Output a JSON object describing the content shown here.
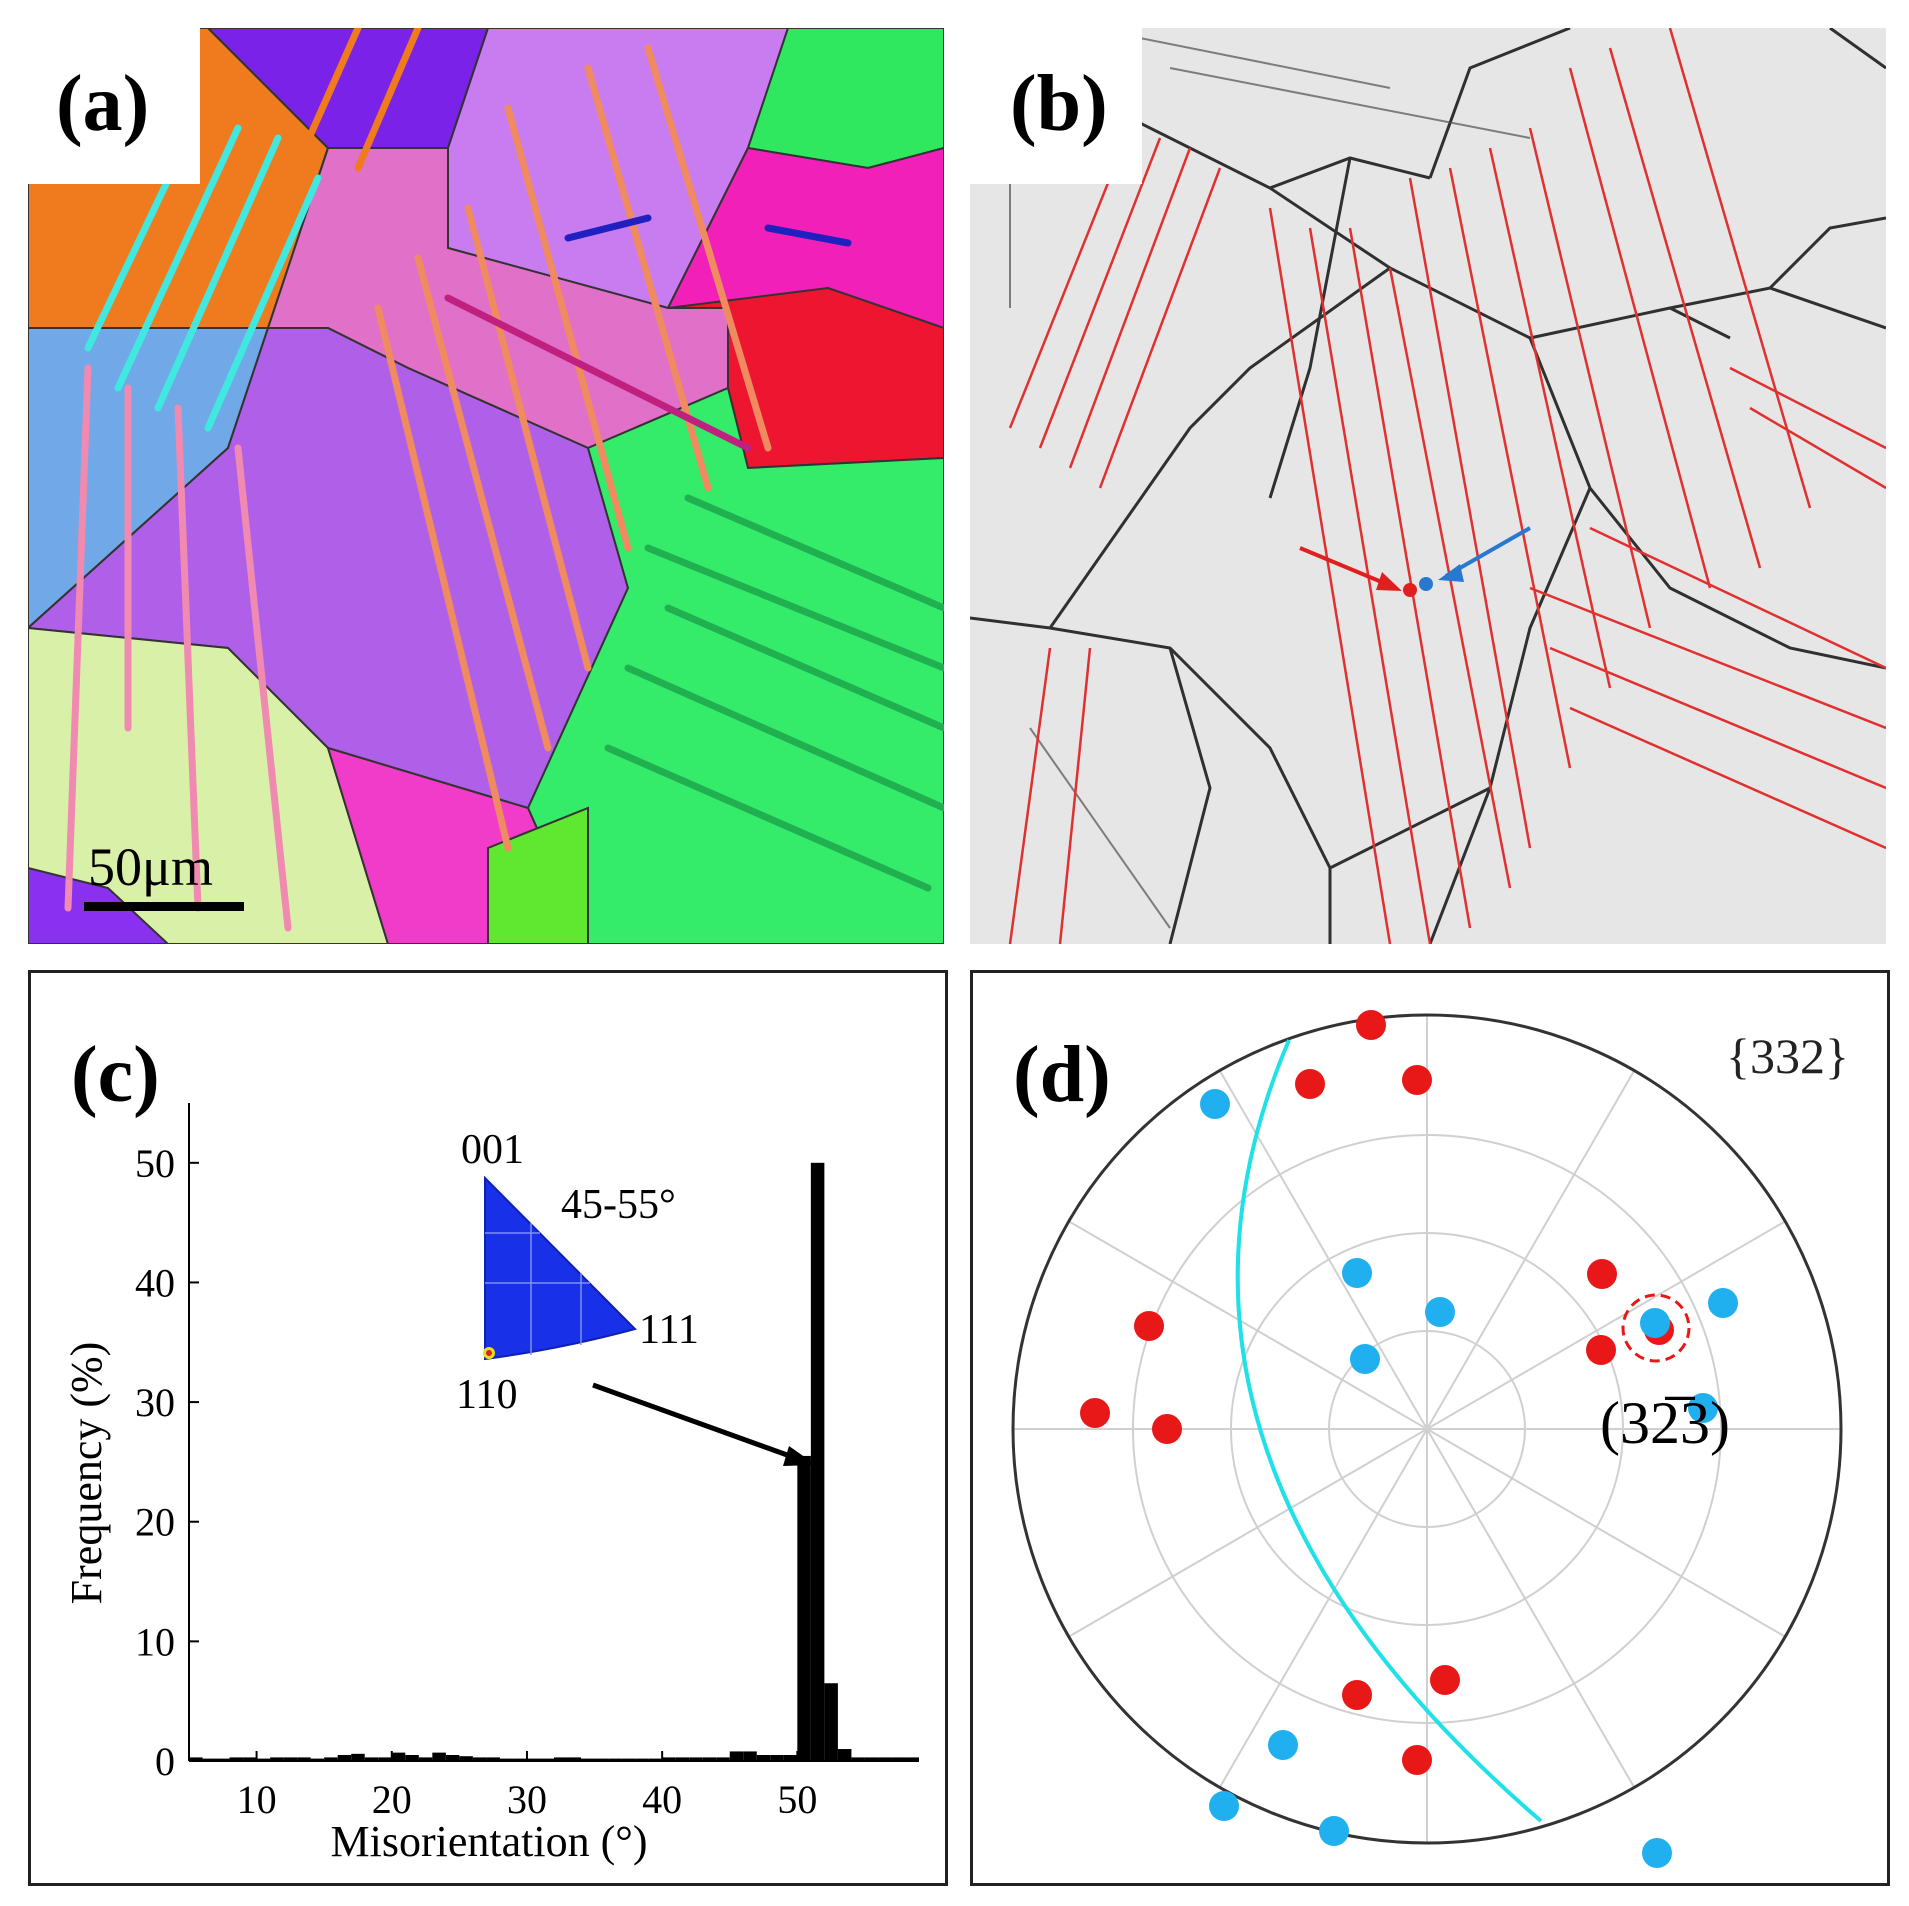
{
  "panels": {
    "a": {
      "label": "(a)",
      "scale_bar": "50μm"
    },
    "b": {
      "label": "(b)"
    },
    "c": {
      "label": "(c)"
    },
    "d": {
      "label": "(d)",
      "family": "{332}",
      "plane": "(32̅3)"
    }
  },
  "inset": {
    "corner_001": "001",
    "corner_111": "111",
    "corner_110": "110",
    "angle_range": "45-55°"
  },
  "chart_data": {
    "type": "bar",
    "title": "",
    "xlabel": "Misorientation (°)",
    "ylabel": "Frequency (%)",
    "xlim": [
      5,
      59
    ],
    "ylim": [
      0,
      55
    ],
    "xticks": [
      10,
      20,
      30,
      40,
      50
    ],
    "yticks": [
      0,
      10,
      20,
      30,
      40,
      50
    ],
    "bin_width": 1,
    "x": [
      5,
      6,
      7,
      8,
      9,
      10,
      11,
      12,
      13,
      14,
      15,
      16,
      17,
      18,
      19,
      20,
      21,
      22,
      23,
      24,
      25,
      26,
      27,
      28,
      29,
      30,
      31,
      32,
      33,
      34,
      35,
      36,
      37,
      38,
      39,
      40,
      41,
      42,
      43,
      44,
      45,
      46,
      47,
      48,
      49,
      50,
      51,
      52,
      53,
      54,
      55,
      56,
      57,
      58
    ],
    "values": [
      0.3,
      0.2,
      0.2,
      0.3,
      0.3,
      0.2,
      0.3,
      0.3,
      0.3,
      0.2,
      0.3,
      0.5,
      0.6,
      0.3,
      0.3,
      0.7,
      0.5,
      0.3,
      0.7,
      0.5,
      0.4,
      0.3,
      0.3,
      0.2,
      0.2,
      0.2,
      0.2,
      0.3,
      0.3,
      0.2,
      0.2,
      0.2,
      0.2,
      0.2,
      0.2,
      0.3,
      0.3,
      0.3,
      0.3,
      0.3,
      0.8,
      0.8,
      0.5,
      0.5,
      0.5,
      25.5,
      50,
      6.5,
      1,
      0.3,
      0.3,
      0.3,
      0.3,
      0.3
    ]
  }
}
